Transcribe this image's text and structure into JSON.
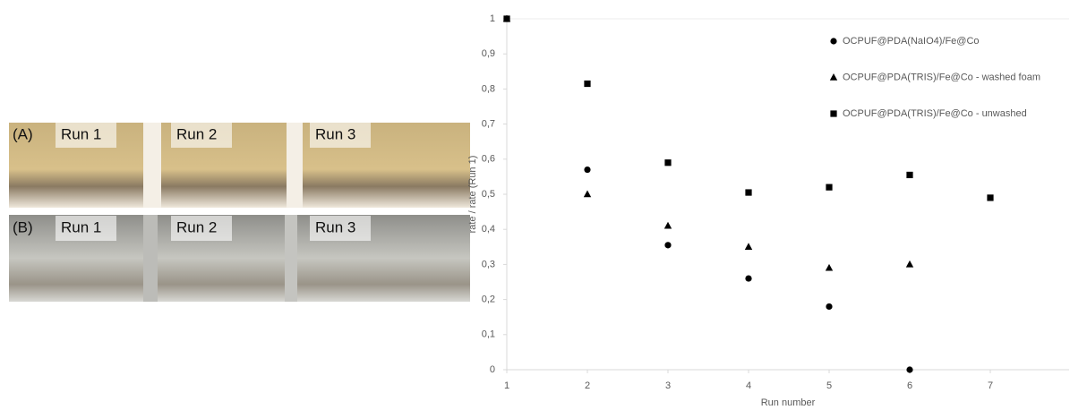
{
  "photo_panel": {
    "rows": [
      {
        "label": "(A)",
        "runs": [
          "Run 1",
          "Run 2",
          "Run 3"
        ]
      },
      {
        "label": "(B)",
        "runs": [
          "Run 1",
          "Run 2",
          "Run 3"
        ]
      }
    ]
  },
  "chart_data": {
    "type": "scatter",
    "x_label": "Run number",
    "y_label": "rate / rate (Run 1)",
    "x": [
      1,
      2,
      3,
      4,
      5,
      6,
      7
    ],
    "series": [
      {
        "name": "OCPUF@PDA(NaIO4)/Fe@Co",
        "marker": "circle",
        "color": "#000000",
        "values": [
          1,
          0.57,
          0.355,
          0.26,
          0.18,
          0,
          null
        ]
      },
      {
        "name": "OCPUF@PDA(TRIS)/Fe@Co - washed foam",
        "marker": "triangle",
        "color": "#000000",
        "values": [
          1,
          0.5,
          0.41,
          0.35,
          0.29,
          0.3,
          null
        ]
      },
      {
        "name": "OCPUF@PDA(TRIS)/Fe@Co - unwashed",
        "marker": "square",
        "color": "#000000",
        "values": [
          1,
          0.815,
          0.59,
          0.505,
          0.52,
          0.555,
          0.49
        ]
      }
    ],
    "xlim": [
      1,
      8
    ],
    "xticks": [
      1,
      2,
      3,
      4,
      5,
      6,
      7
    ],
    "ylim": [
      0,
      1
    ],
    "yticks": [
      0,
      {
        "value": 0.1,
        "label": "0,1"
      },
      {
        "value": 0.2,
        "label": "0,2"
      },
      {
        "value": 0.3,
        "label": "0,3"
      },
      {
        "value": 0.4,
        "label": "0,4"
      },
      {
        "value": 0.5,
        "label": "0,5"
      },
      {
        "value": 0.6,
        "label": "0,6"
      },
      {
        "value": 0.7,
        "label": "0,7"
      },
      {
        "value": 0.8,
        "label": "0,8"
      },
      {
        "value": 0.9,
        "label": "0,9"
      },
      1
    ],
    "grid": false,
    "legend": "upper right"
  }
}
